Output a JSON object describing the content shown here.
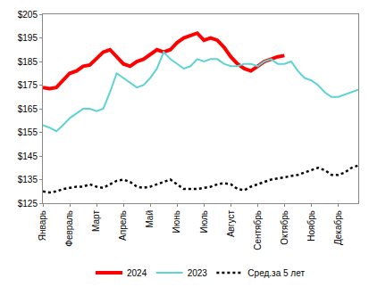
{
  "chart_data": {
    "type": "line",
    "categories": [
      "Январь",
      null,
      null,
      null,
      "Февраль",
      null,
      null,
      null,
      "Март",
      null,
      null,
      null,
      "Апрель",
      null,
      null,
      null,
      "Май",
      null,
      null,
      null,
      "Июнь",
      null,
      null,
      null,
      "Июль",
      null,
      null,
      null,
      "Август",
      null,
      null,
      null,
      "Сентябрь",
      null,
      null,
      null,
      "Октябрь",
      null,
      null,
      null,
      "Ноябрь",
      null,
      null,
      null,
      "Декабрь",
      null,
      null,
      null
    ],
    "series": [
      {
        "name": "2024",
        "color": "#ff0000",
        "line_style": "solid",
        "values": [
          174,
          173.5,
          174,
          177,
          180,
          181,
          183,
          183.5,
          186,
          189,
          190,
          187,
          184,
          183,
          185,
          186,
          188,
          190,
          189,
          190,
          193,
          195,
          196,
          197,
          194,
          195,
          194,
          191,
          187,
          184,
          182,
          181,
          183,
          185,
          186,
          187,
          187.5,
          null,
          null,
          null,
          null,
          null,
          null,
          null,
          null,
          null,
          null,
          null
        ]
      },
      {
        "name": "2023",
        "color": "#5fd3d3",
        "line_style": "solid",
        "values": [
          158,
          157,
          155.5,
          158,
          161,
          163,
          165,
          165,
          164,
          165,
          172,
          180,
          178,
          176,
          174,
          175,
          178,
          182,
          189,
          186,
          184,
          182,
          183,
          186,
          185,
          186,
          186,
          184,
          183,
          183,
          184,
          184,
          183,
          185,
          186,
          184,
          184,
          185,
          181,
          178,
          177,
          175,
          172,
          170,
          170,
          171,
          172,
          173
        ]
      },
      {
        "name": "Сред.за 5 лет",
        "color": "#000000",
        "line_style": "dotted",
        "values": [
          130,
          129.5,
          130,
          131,
          131.5,
          132,
          132,
          133,
          132,
          131.5,
          133,
          134.5,
          135,
          134,
          132,
          131.5,
          132,
          133,
          134,
          135,
          133,
          131,
          131,
          131,
          131.5,
          132,
          133,
          133.5,
          133,
          131,
          130.5,
          132,
          133,
          134,
          135,
          135.5,
          136,
          136.5,
          137,
          138,
          139,
          140,
          139,
          137,
          137,
          138,
          140,
          141
        ]
      }
    ],
    "ylim": [
      125,
      205
    ],
    "yticks": [
      {
        "value": 125,
        "label": "$125"
      },
      {
        "value": 135,
        "label": "$135"
      },
      {
        "value": 145,
        "label": "$145"
      },
      {
        "value": 155,
        "label": "$155"
      },
      {
        "value": 165,
        "label": "$165"
      },
      {
        "value": 175,
        "label": "$175"
      },
      {
        "value": 185,
        "label": "$185"
      },
      {
        "value": 195,
        "label": "$195"
      },
      {
        "value": 205,
        "label": "$205"
      }
    ],
    "grid": false,
    "legend": "bottom"
  }
}
